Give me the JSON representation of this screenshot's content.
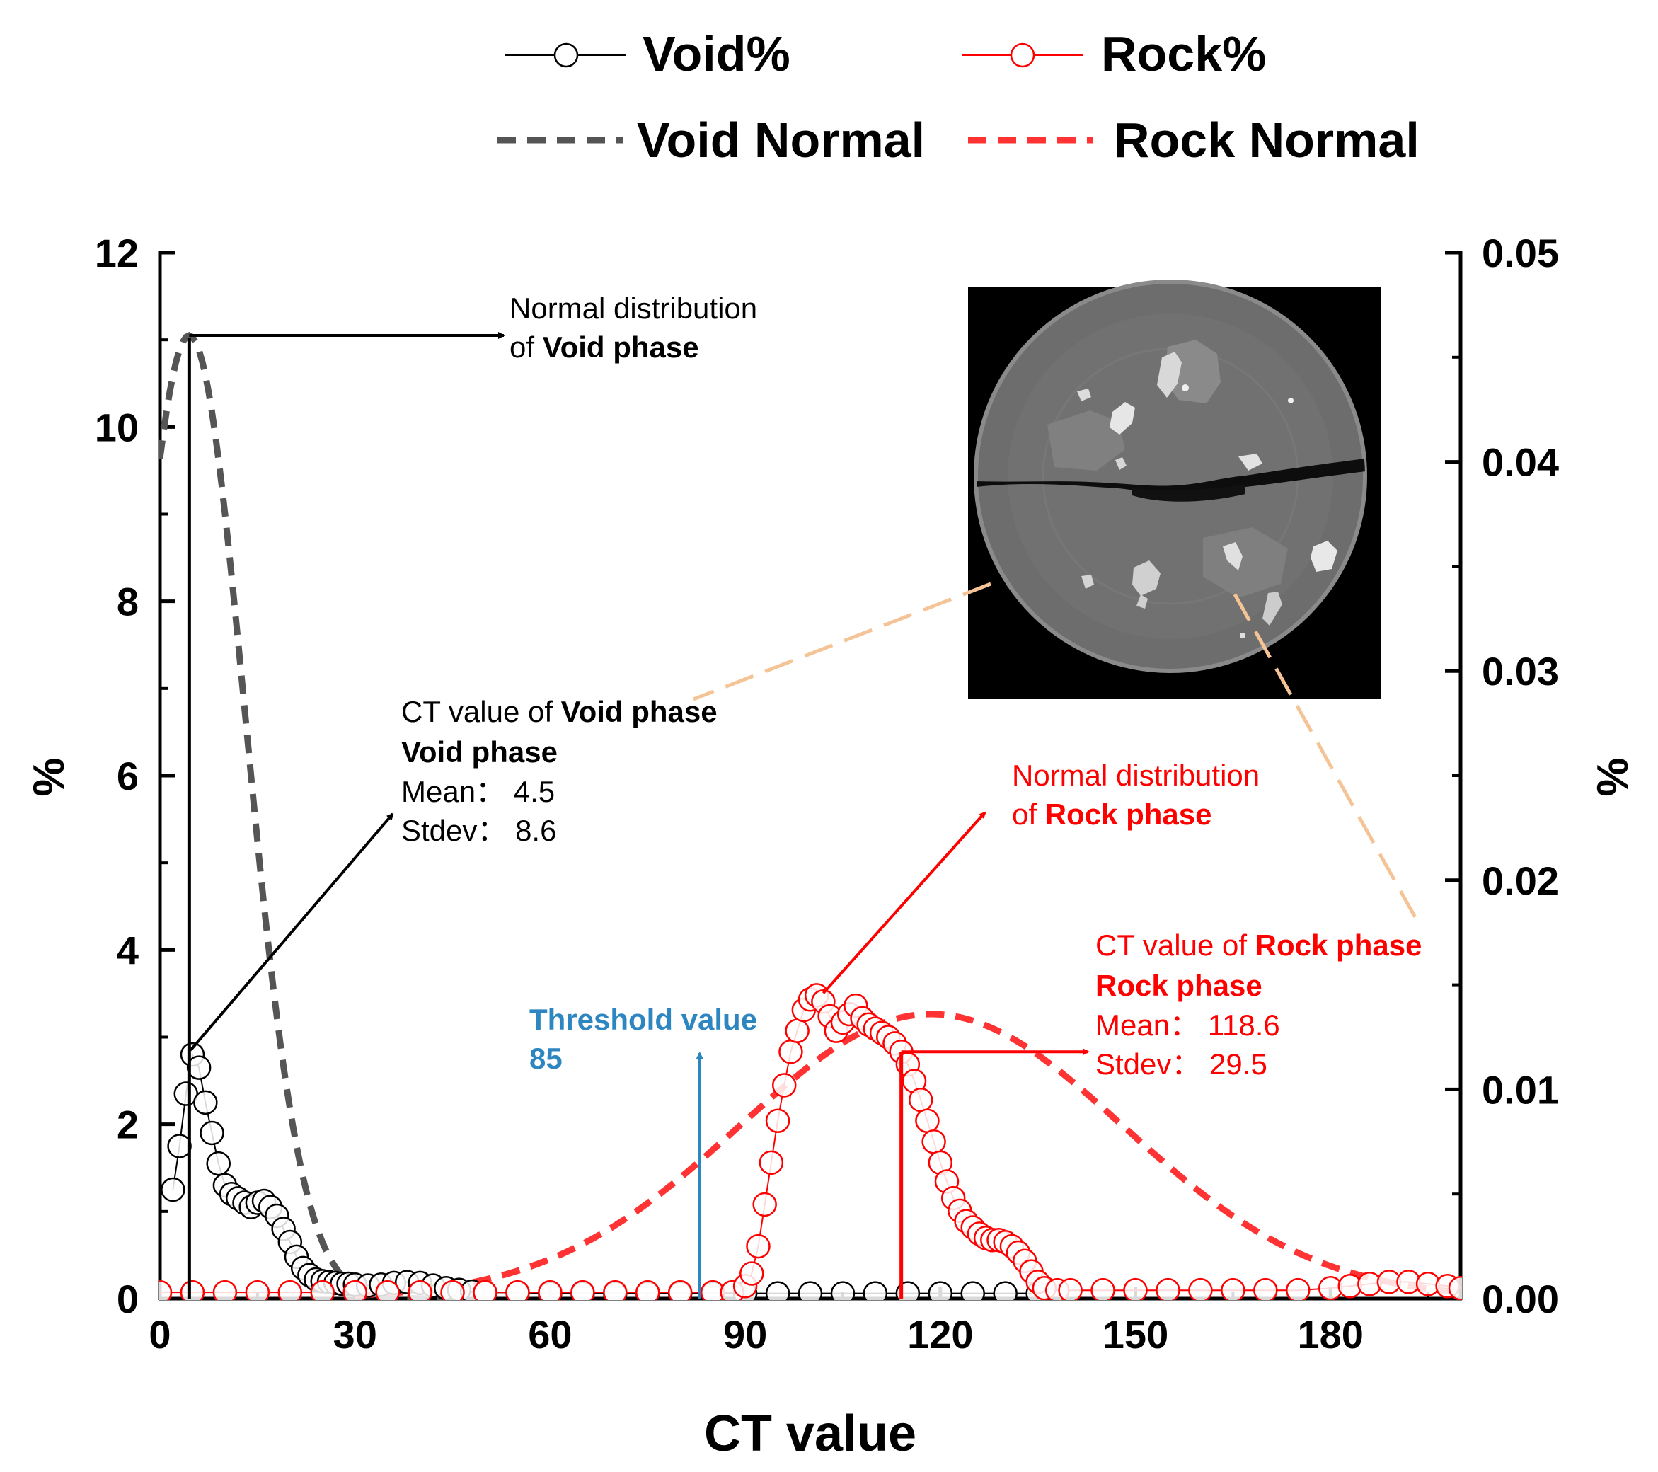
{
  "chart_data": {
    "type": "scatter",
    "xlabel": "CT value",
    "ylabel_left": "%",
    "ylabel_right": "%",
    "xlim": [
      0,
      200
    ],
    "ylim_left": [
      0,
      12
    ],
    "ylim_right": [
      0,
      0.05
    ],
    "x_ticks": [
      0,
      30,
      60,
      90,
      120,
      150,
      180
    ],
    "y_left_ticks": [
      0,
      2,
      4,
      6,
      8,
      10,
      12
    ],
    "y_right_ticks": [
      "0.00",
      "0.01",
      "0.02",
      "0.03",
      "0.04",
      "0.05"
    ],
    "legend": [
      {
        "label": "Void%",
        "style": "line-open-circle",
        "color": "#000000"
      },
      {
        "label": "Rock%",
        "style": "line-open-circle",
        "color": "#ff0000"
      },
      {
        "label": "Void Normal",
        "style": "dashed",
        "color": "#555555"
      },
      {
        "label": "Rock Normal",
        "style": "dashed",
        "color": "#ff3333"
      }
    ],
    "series": [
      {
        "name": "Void%",
        "axis": "left",
        "color": "#000000",
        "x": [
          2,
          3,
          4,
          5,
          6,
          7,
          8,
          9,
          10,
          11,
          12,
          13,
          14,
          15,
          16,
          17,
          18,
          19,
          20,
          21,
          22,
          23,
          24,
          25,
          26,
          27,
          28,
          29,
          30,
          32,
          34,
          36,
          38,
          40,
          42,
          44,
          46,
          48,
          50,
          55,
          60,
          65,
          70,
          75,
          80,
          85,
          90,
          95,
          100,
          105,
          110,
          115,
          120,
          125,
          130,
          135
        ],
        "y": [
          1.25,
          1.75,
          2.35,
          2.8,
          2.65,
          2.25,
          1.9,
          1.55,
          1.3,
          1.2,
          1.15,
          1.1,
          1.05,
          1.1,
          1.12,
          1.05,
          0.95,
          0.8,
          0.65,
          0.48,
          0.35,
          0.27,
          0.22,
          0.2,
          0.19,
          0.18,
          0.17,
          0.17,
          0.16,
          0.15,
          0.16,
          0.18,
          0.19,
          0.18,
          0.15,
          0.12,
          0.1,
          0.08,
          0.07,
          0.07,
          0.06,
          0.06,
          0.06,
          0.06,
          0.06,
          0.06,
          0.06,
          0.06,
          0.06,
          0.06,
          0.06,
          0.06,
          0.06,
          0.06,
          0.06,
          0.06
        ]
      },
      {
        "name": "Rock%",
        "axis": "right",
        "color": "#ff0000",
        "x": [
          0,
          5,
          10,
          15,
          20,
          25,
          30,
          35,
          40,
          45,
          50,
          55,
          60,
          65,
          70,
          75,
          80,
          85,
          88,
          90,
          91,
          92,
          93,
          94,
          95,
          96,
          97,
          98,
          99,
          100,
          101,
          102,
          103,
          104,
          105,
          106,
          107,
          108,
          109,
          110,
          111,
          112,
          113,
          114,
          115,
          116,
          117,
          118,
          119,
          120,
          121,
          122,
          123,
          124,
          125,
          126,
          127,
          128,
          129,
          130,
          131,
          132,
          133,
          134,
          135,
          136,
          138,
          140,
          145,
          150,
          155,
          160,
          165,
          170,
          175,
          180,
          183,
          186,
          189,
          192,
          195,
          198,
          200
        ],
        "y": [
          0.0003,
          0.0003,
          0.0003,
          0.0003,
          0.0003,
          0.0003,
          0.0003,
          0.0003,
          0.0003,
          0.0003,
          0.0003,
          0.0003,
          0.0003,
          0.0003,
          0.0003,
          0.0003,
          0.0003,
          0.0003,
          0.0003,
          0.0006,
          0.0012,
          0.0025,
          0.0045,
          0.0065,
          0.0085,
          0.0102,
          0.0118,
          0.0128,
          0.0138,
          0.0143,
          0.0145,
          0.0142,
          0.0135,
          0.0128,
          0.0132,
          0.0136,
          0.014,
          0.0134,
          0.0131,
          0.0129,
          0.0127,
          0.0125,
          0.0122,
          0.0118,
          0.0112,
          0.0104,
          0.0095,
          0.0085,
          0.0075,
          0.0065,
          0.0056,
          0.0048,
          0.0042,
          0.0037,
          0.0034,
          0.0031,
          0.0029,
          0.0028,
          0.0028,
          0.0027,
          0.0025,
          0.0022,
          0.0018,
          0.0013,
          0.0008,
          0.0005,
          0.0004,
          0.0004,
          0.0004,
          0.0004,
          0.0004,
          0.0004,
          0.0004,
          0.0004,
          0.0004,
          0.0005,
          0.0006,
          0.0007,
          0.0008,
          0.0008,
          0.0007,
          0.0006,
          0.0005
        ]
      },
      {
        "name": "Void Normal",
        "axis": "left",
        "style": "dashed",
        "color": "#555555",
        "mean": 4.5,
        "stdev": 8.6,
        "x_range": [
          0,
          47
        ],
        "peak": 11.05
      },
      {
        "name": "Rock Normal",
        "axis": "right",
        "style": "dashed",
        "color": "#ff3333",
        "mean": 118.6,
        "stdev": 29.5,
        "x_range": [
          30,
          200
        ],
        "peak": 0.0136
      }
    ],
    "annotations": {
      "void_normal": {
        "line1": "Normal distribution",
        "line2_prefix": "of ",
        "line2_bold": "Void phase"
      },
      "void_ct": {
        "line1_prefix": "CT value  of ",
        "line1_bold": "Void phase",
        "line2": "Void phase",
        "mean": "Mean：  4.5",
        "stdev": "Stdev：  8.6"
      },
      "rock_normal": {
        "line1": "Normal distribution",
        "line2_prefix": "of ",
        "line2_bold": "Rock phase"
      },
      "rock_ct": {
        "line1_prefix": "CT value  of ",
        "line1_bold": "Rock phase",
        "line2": "Rock phase",
        "mean": "Mean：  118.6",
        "stdev": "Stdev：  29.5"
      },
      "threshold": {
        "label": "Threshold value",
        "value": "85",
        "x": 83
      }
    },
    "inset": {
      "description": "CT cross-section of rock core with horizontal fracture"
    }
  },
  "colors": {
    "black": "#000000",
    "red": "#ff0000",
    "gray_dash": "#555555",
    "red_dash": "#ff3333",
    "threshold_blue": "#2e86c1",
    "leader_orange": "#f5c496"
  }
}
